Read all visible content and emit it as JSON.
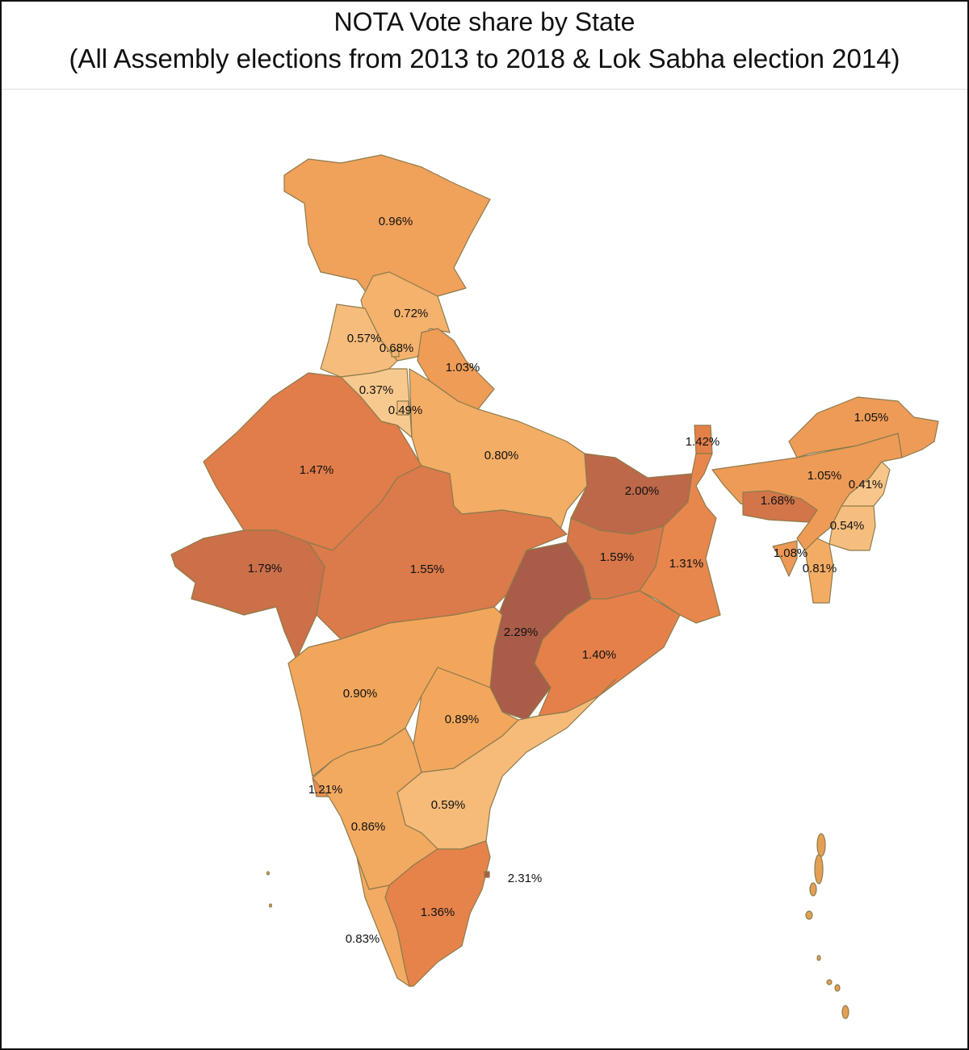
{
  "title": {
    "line1": "NOTA Vote share by State",
    "line2": "(All Assembly elections from 2013 to 2018 & Lok Sabha election 2014)"
  },
  "chart_data": {
    "type": "choropleth",
    "title": "NOTA Vote share by State (All Assembly elections from 2013 to 2018 & Lok Sabha election 2014)",
    "unit": "%",
    "color_scale": {
      "low": "#f8c98e",
      "mid": "#f2a65c",
      "high": "#e5804a",
      "max": "#a85c48"
    },
    "regions": [
      {
        "value": 0.96,
        "label": "0.96%"
      },
      {
        "value": 0.72,
        "label": "0.72%"
      },
      {
        "value": 0.57,
        "label": "0.57%"
      },
      {
        "value": 0.68,
        "label": "0.68%"
      },
      {
        "value": 0.37,
        "label": "0.37%"
      },
      {
        "value": 0.49,
        "label": "0.49%"
      },
      {
        "value": 1.03,
        "label": "1.03%"
      },
      {
        "value": 0.8,
        "label": "0.80%"
      },
      {
        "value": 1.47,
        "label": "1.47%"
      },
      {
        "value": 1.79,
        "label": "1.79%"
      },
      {
        "value": 1.55,
        "label": "1.55%"
      },
      {
        "value": 2.0,
        "label": "2.00%"
      },
      {
        "value": 1.59,
        "label": "1.59%"
      },
      {
        "value": 1.42,
        "label": "1.42%"
      },
      {
        "value": 1.31,
        "label": "1.31%"
      },
      {
        "value": 2.29,
        "label": "2.29%"
      },
      {
        "value": 1.4,
        "label": "1.40%"
      },
      {
        "value": 0.9,
        "label": "0.90%"
      },
      {
        "value": 0.89,
        "label": "0.89%"
      },
      {
        "value": 0.59,
        "label": "0.59%"
      },
      {
        "value": 1.21,
        "label": "1.21%"
      },
      {
        "value": 0.86,
        "label": "0.86%"
      },
      {
        "value": 0.83,
        "label": "0.83%"
      },
      {
        "value": 1.36,
        "label": "1.36%"
      },
      {
        "value": 2.31,
        "label": "2.31%"
      },
      {
        "value": 1.05,
        "label": "1.05%"
      },
      {
        "value": 1.05,
        "label": "1.05%"
      },
      {
        "value": 1.68,
        "label": "1.68%"
      },
      {
        "value": 0.41,
        "label": "0.41%"
      },
      {
        "value": 0.54,
        "label": "0.54%"
      },
      {
        "value": 1.08,
        "label": "1.08%"
      },
      {
        "value": 0.81,
        "label": "0.81%"
      }
    ]
  }
}
